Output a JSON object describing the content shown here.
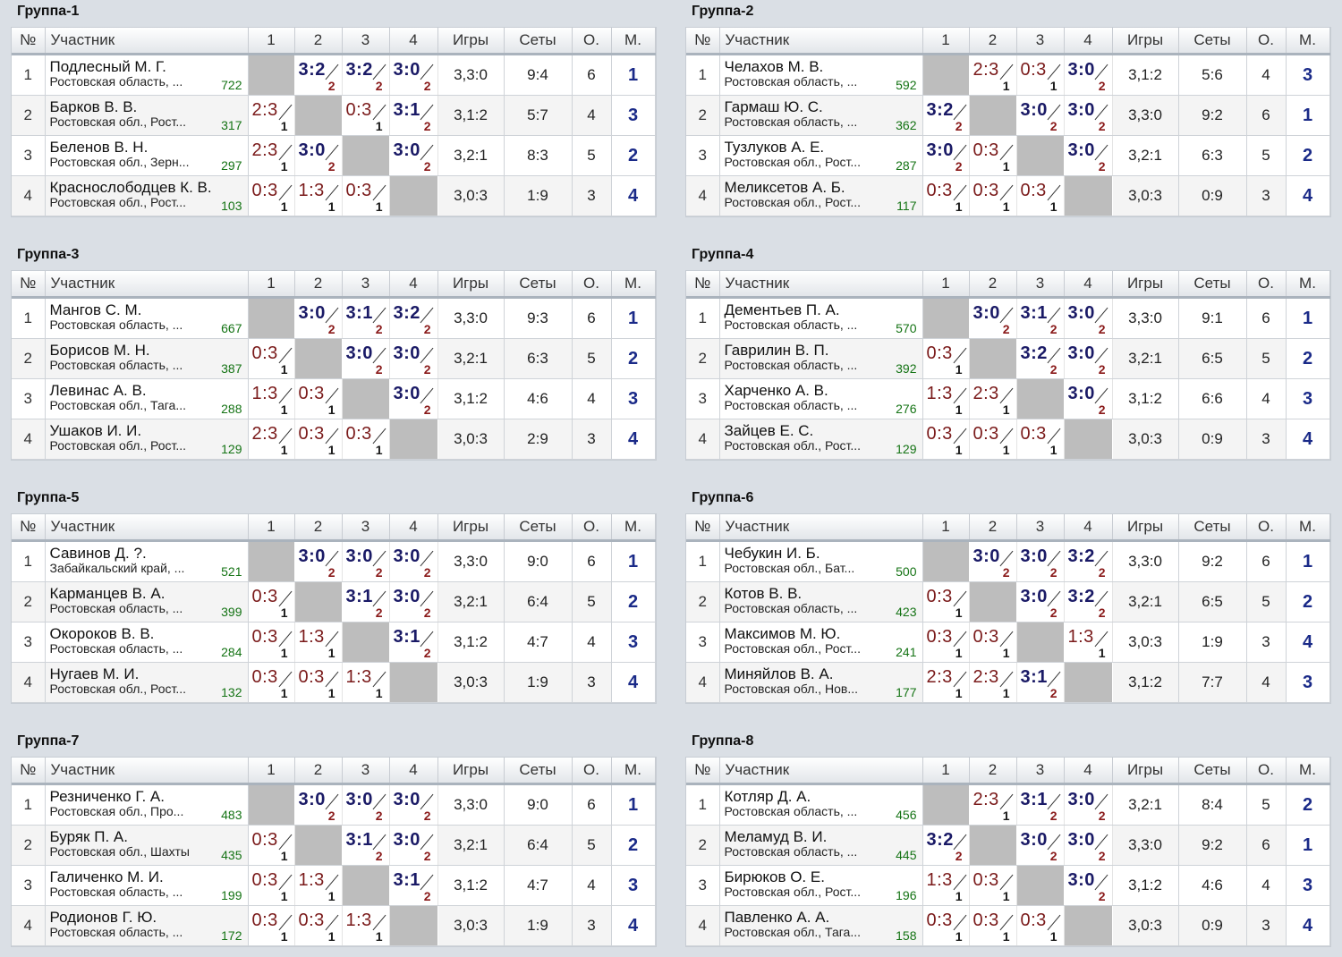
{
  "headers": {
    "no": "№",
    "participant": "Участник",
    "c1": "1",
    "c2": "2",
    "c3": "3",
    "c4": "4",
    "games": "Игры",
    "sets": "Сеты",
    "points": "О.",
    "place": "М."
  },
  "groups": [
    {
      "title": "Группа-1",
      "rows": [
        {
          "no": "1",
          "name": "Подлесный М. Г.",
          "region": "Ростовская область, ...",
          "rating": "722",
          "results": [
            "",
            "3:2|2",
            "3:2|2",
            "3:0|2"
          ],
          "games": "3,3:0",
          "sets": "9:4",
          "points": "6",
          "place": "1"
        },
        {
          "no": "2",
          "name": "Барков В. В.",
          "region": "Ростовская обл., Рост...",
          "rating": "317",
          "results": [
            "2:3|1",
            "",
            "0:3|1",
            "3:1|2"
          ],
          "games": "3,1:2",
          "sets": "5:7",
          "points": "4",
          "place": "3"
        },
        {
          "no": "3",
          "name": "Беленов В. Н.",
          "region": "Ростовская обл., Зерн...",
          "rating": "297",
          "results": [
            "2:3|1",
            "3:0|2",
            "",
            "3:0|2"
          ],
          "games": "3,2:1",
          "sets": "8:3",
          "points": "5",
          "place": "2"
        },
        {
          "no": "4",
          "name": "Краснослободцев К. В.",
          "region": "Ростовская обл., Рост...",
          "rating": "103",
          "results": [
            "0:3|1",
            "1:3|1",
            "0:3|1",
            ""
          ],
          "games": "3,0:3",
          "sets": "1:9",
          "points": "3",
          "place": "4"
        }
      ]
    },
    {
      "title": "Группа-2",
      "rows": [
        {
          "no": "1",
          "name": "Челахов М. В.",
          "region": "Ростовская область, ...",
          "rating": "592",
          "results": [
            "",
            "2:3|1",
            "0:3|1",
            "3:0|2"
          ],
          "games": "3,1:2",
          "sets": "5:6",
          "points": "4",
          "place": "3"
        },
        {
          "no": "2",
          "name": "Гармаш Ю. С.",
          "region": "Ростовская область, ...",
          "rating": "362",
          "results": [
            "3:2|2",
            "",
            "3:0|2",
            "3:0|2"
          ],
          "games": "3,3:0",
          "sets": "9:2",
          "points": "6",
          "place": "1"
        },
        {
          "no": "3",
          "name": "Тузлуков А. Е.",
          "region": "Ростовская обл., Рост...",
          "rating": "287",
          "results": [
            "3:0|2",
            "0:3|1",
            "",
            "3:0|2"
          ],
          "games": "3,2:1",
          "sets": "6:3",
          "points": "5",
          "place": "2"
        },
        {
          "no": "4",
          "name": "Меликсетов А. Б.",
          "region": "Ростовская обл., Рост...",
          "rating": "117",
          "results": [
            "0:3|1",
            "0:3|1",
            "0:3|1",
            ""
          ],
          "games": "3,0:3",
          "sets": "0:9",
          "points": "3",
          "place": "4"
        }
      ]
    },
    {
      "title": "Группа-3",
      "rows": [
        {
          "no": "1",
          "name": "Мангов С. М.",
          "region": "Ростовская область, ...",
          "rating": "667",
          "results": [
            "",
            "3:0|2",
            "3:1|2",
            "3:2|2"
          ],
          "games": "3,3:0",
          "sets": "9:3",
          "points": "6",
          "place": "1"
        },
        {
          "no": "2",
          "name": "Борисов М. Н.",
          "region": "Ростовская область, ...",
          "rating": "387",
          "results": [
            "0:3|1",
            "",
            "3:0|2",
            "3:0|2"
          ],
          "games": "3,2:1",
          "sets": "6:3",
          "points": "5",
          "place": "2"
        },
        {
          "no": "3",
          "name": "Левинас А. В.",
          "region": "Ростовская обл., Тага...",
          "rating": "288",
          "results": [
            "1:3|1",
            "0:3|1",
            "",
            "3:0|2"
          ],
          "games": "3,1:2",
          "sets": "4:6",
          "points": "4",
          "place": "3"
        },
        {
          "no": "4",
          "name": "Ушаков И. И.",
          "region": "Ростовская обл., Рост...",
          "rating": "129",
          "results": [
            "2:3|1",
            "0:3|1",
            "0:3|1",
            ""
          ],
          "games": "3,0:3",
          "sets": "2:9",
          "points": "3",
          "place": "4"
        }
      ]
    },
    {
      "title": "Группа-4",
      "rows": [
        {
          "no": "1",
          "name": "Дементьев П. А.",
          "region": "Ростовская область, ...",
          "rating": "570",
          "results": [
            "",
            "3:0|2",
            "3:1|2",
            "3:0|2"
          ],
          "games": "3,3:0",
          "sets": "9:1",
          "points": "6",
          "place": "1"
        },
        {
          "no": "2",
          "name": "Гаврилин В. П.",
          "region": "Ростовская область, ...",
          "rating": "392",
          "results": [
            "0:3|1",
            "",
            "3:2|2",
            "3:0|2"
          ],
          "games": "3,2:1",
          "sets": "6:5",
          "points": "5",
          "place": "2"
        },
        {
          "no": "3",
          "name": "Харченко А. В.",
          "region": "Ростовская область, ...",
          "rating": "276",
          "results": [
            "1:3|1",
            "2:3|1",
            "",
            "3:0|2"
          ],
          "games": "3,1:2",
          "sets": "6:6",
          "points": "4",
          "place": "3"
        },
        {
          "no": "4",
          "name": "Зайцев Е. С.",
          "region": "Ростовская обл., Рост...",
          "rating": "129",
          "results": [
            "0:3|1",
            "0:3|1",
            "0:3|1",
            ""
          ],
          "games": "3,0:3",
          "sets": "0:9",
          "points": "3",
          "place": "4"
        }
      ]
    },
    {
      "title": "Группа-5",
      "rows": [
        {
          "no": "1",
          "name": "Савинов Д. ?.",
          "region": "Забайкальский край, ...",
          "rating": "521",
          "results": [
            "",
            "3:0|2",
            "3:0|2",
            "3:0|2"
          ],
          "games": "3,3:0",
          "sets": "9:0",
          "points": "6",
          "place": "1"
        },
        {
          "no": "2",
          "name": "Карманцев В. А.",
          "region": "Ростовская область, ...",
          "rating": "399",
          "results": [
            "0:3|1",
            "",
            "3:1|2",
            "3:0|2"
          ],
          "games": "3,2:1",
          "sets": "6:4",
          "points": "5",
          "place": "2"
        },
        {
          "no": "3",
          "name": "Окороков В. В.",
          "region": "Ростовская область, ...",
          "rating": "284",
          "results": [
            "0:3|1",
            "1:3|1",
            "",
            "3:1|2"
          ],
          "games": "3,1:2",
          "sets": "4:7",
          "points": "4",
          "place": "3"
        },
        {
          "no": "4",
          "name": "Нугаев М. И.",
          "region": "Ростовская обл., Рост...",
          "rating": "132",
          "results": [
            "0:3|1",
            "0:3|1",
            "1:3|1",
            ""
          ],
          "games": "3,0:3",
          "sets": "1:9",
          "points": "3",
          "place": "4"
        }
      ]
    },
    {
      "title": "Группа-6",
      "rows": [
        {
          "no": "1",
          "name": "Чебукин И. Б.",
          "region": "Ростовская обл., Бат...",
          "rating": "500",
          "results": [
            "",
            "3:0|2",
            "3:0|2",
            "3:2|2"
          ],
          "games": "3,3:0",
          "sets": "9:2",
          "points": "6",
          "place": "1"
        },
        {
          "no": "2",
          "name": "Котов В. В.",
          "region": "Ростовская область, ...",
          "rating": "423",
          "results": [
            "0:3|1",
            "",
            "3:0|2",
            "3:2|2"
          ],
          "games": "3,2:1",
          "sets": "6:5",
          "points": "5",
          "place": "2"
        },
        {
          "no": "3",
          "name": "Максимов М. Ю.",
          "region": "Ростовская обл., Рост...",
          "rating": "241",
          "results": [
            "0:3|1",
            "0:3|1",
            "",
            "1:3|1"
          ],
          "games": "3,0:3",
          "sets": "1:9",
          "points": "3",
          "place": "4"
        },
        {
          "no": "4",
          "name": "Миняйлов В. А.",
          "region": "Ростовская обл., Нов...",
          "rating": "177",
          "results": [
            "2:3|1",
            "2:3|1",
            "3:1|2",
            ""
          ],
          "games": "3,1:2",
          "sets": "7:7",
          "points": "4",
          "place": "3"
        }
      ]
    },
    {
      "title": "Группа-7",
      "rows": [
        {
          "no": "1",
          "name": "Резниченко Г. А.",
          "region": "Ростовская обл., Про...",
          "rating": "483",
          "results": [
            "",
            "3:0|2",
            "3:0|2",
            "3:0|2"
          ],
          "games": "3,3:0",
          "sets": "9:0",
          "points": "6",
          "place": "1"
        },
        {
          "no": "2",
          "name": "Буряк П. А.",
          "region": "Ростовская обл., Шахты",
          "rating": "435",
          "results": [
            "0:3|1",
            "",
            "3:1|2",
            "3:0|2"
          ],
          "games": "3,2:1",
          "sets": "6:4",
          "points": "5",
          "place": "2"
        },
        {
          "no": "3",
          "name": "Галиченко М. И.",
          "region": "Ростовская область, ...",
          "rating": "199",
          "results": [
            "0:3|1",
            "1:3|1",
            "",
            "3:1|2"
          ],
          "games": "3,1:2",
          "sets": "4:7",
          "points": "4",
          "place": "3"
        },
        {
          "no": "4",
          "name": "Родионов Г. Ю.",
          "region": "Ростовская область, ...",
          "rating": "172",
          "results": [
            "0:3|1",
            "0:3|1",
            "1:3|1",
            ""
          ],
          "games": "3,0:3",
          "sets": "1:9",
          "points": "3",
          "place": "4"
        }
      ]
    },
    {
      "title": "Группа-8",
      "rows": [
        {
          "no": "1",
          "name": "Котляр Д. А.",
          "region": "Ростовская область, ...",
          "rating": "456",
          "results": [
            "",
            "2:3|1",
            "3:1|2",
            "3:0|2"
          ],
          "games": "3,2:1",
          "sets": "8:4",
          "points": "5",
          "place": "2"
        },
        {
          "no": "2",
          "name": "Меламуд В. И.",
          "region": "Ростовская область, ...",
          "rating": "445",
          "results": [
            "3:2|2",
            "",
            "3:0|2",
            "3:0|2"
          ],
          "games": "3,3:0",
          "sets": "9:2",
          "points": "6",
          "place": "1"
        },
        {
          "no": "3",
          "name": "Бирюков О. Е.",
          "region": "Ростовская обл., Рост...",
          "rating": "196",
          "results": [
            "1:3|1",
            "0:3|1",
            "",
            "3:0|2"
          ],
          "games": "3,1:2",
          "sets": "4:6",
          "points": "4",
          "place": "3"
        },
        {
          "no": "4",
          "name": "Павленко А. А.",
          "region": "Ростовская обл., Тага...",
          "rating": "158",
          "results": [
            "0:3|1",
            "0:3|1",
            "0:3|1",
            ""
          ],
          "games": "3,0:3",
          "sets": "0:9",
          "points": "3",
          "place": "4"
        }
      ]
    }
  ]
}
